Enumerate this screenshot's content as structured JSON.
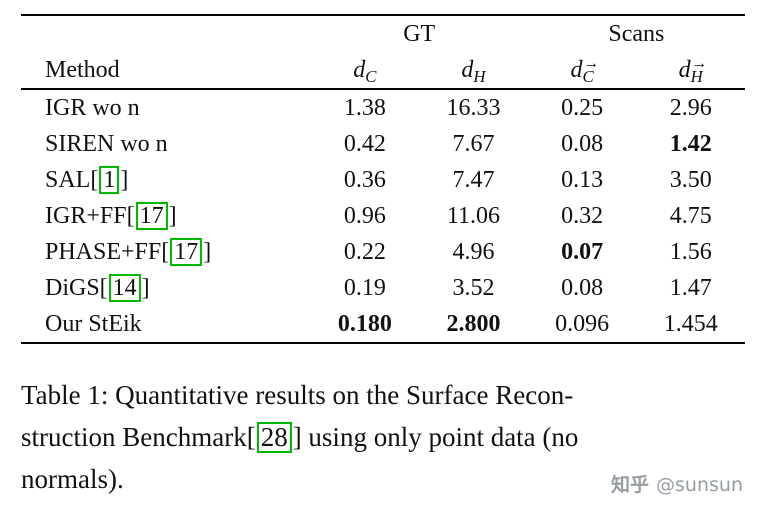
{
  "page": {
    "background": "#ffffff",
    "text_color": "#111111",
    "citation_box_color": "#00bb00",
    "watermark_color": "#969ca3"
  },
  "table": {
    "group_headers": [
      {
        "label": "GT"
      },
      {
        "label": "Scans"
      }
    ],
    "method_header": "Method",
    "metric_headers": [
      {
        "base": "d",
        "sub": "C",
        "vec": false
      },
      {
        "base": "d",
        "sub": "H",
        "vec": false
      },
      {
        "base": "d",
        "sub": "C",
        "vec": true
      },
      {
        "base": "d",
        "sub": "H",
        "vec": true
      }
    ],
    "vector_arrow_glyph": "→",
    "rows": [
      {
        "method_pre": "IGR wo n",
        "cite": "",
        "method_post": "",
        "values": [
          {
            "text": "1.38",
            "bold": false
          },
          {
            "text": "16.33",
            "bold": false
          },
          {
            "text": "0.25",
            "bold": false
          },
          {
            "text": "2.96",
            "bold": false
          }
        ]
      },
      {
        "method_pre": "SIREN wo n",
        "cite": "",
        "method_post": "",
        "values": [
          {
            "text": "0.42",
            "bold": false
          },
          {
            "text": "7.67",
            "bold": false
          },
          {
            "text": "0.08",
            "bold": false
          },
          {
            "text": "1.42",
            "bold": true
          }
        ]
      },
      {
        "method_pre": "SAL[",
        "cite": "1",
        "method_post": "]",
        "values": [
          {
            "text": "0.36",
            "bold": false
          },
          {
            "text": "7.47",
            "bold": false
          },
          {
            "text": "0.13",
            "bold": false
          },
          {
            "text": "3.50",
            "bold": false
          }
        ]
      },
      {
        "method_pre": "IGR+FF[",
        "cite": "17",
        "method_post": "]",
        "values": [
          {
            "text": "0.96",
            "bold": false
          },
          {
            "text": "11.06",
            "bold": false
          },
          {
            "text": "0.32",
            "bold": false
          },
          {
            "text": "4.75",
            "bold": false
          }
        ]
      },
      {
        "method_pre": "PHASE+FF[",
        "cite": "17",
        "method_post": "]",
        "values": [
          {
            "text": "0.22",
            "bold": false
          },
          {
            "text": "4.96",
            "bold": false
          },
          {
            "text": "0.07",
            "bold": true
          },
          {
            "text": "1.56",
            "bold": false
          }
        ]
      },
      {
        "method_pre": "DiGS[",
        "cite": "14",
        "method_post": "]",
        "values": [
          {
            "text": "0.19",
            "bold": false
          },
          {
            "text": "3.52",
            "bold": false
          },
          {
            "text": "0.08",
            "bold": false
          },
          {
            "text": "1.47",
            "bold": false
          }
        ]
      },
      {
        "method_pre": "Our StEik",
        "cite": "",
        "method_post": "",
        "values": [
          {
            "text": "0.180",
            "bold": true
          },
          {
            "text": "2.800",
            "bold": true
          },
          {
            "text": "0.096",
            "bold": false
          },
          {
            "text": "1.454",
            "bold": false
          }
        ]
      }
    ]
  },
  "caption": {
    "lines": [
      {
        "pre": "Table 1: Quantitative results on the Surface Recon-",
        "cite": "",
        "post": ""
      },
      {
        "pre": "struction Benchmark[",
        "cite": "28",
        "post": "] using only point data (no"
      },
      {
        "pre": "normals).",
        "cite": "",
        "post": ""
      }
    ]
  },
  "watermark": {
    "brand": "知乎",
    "handle": "@sunsun"
  }
}
